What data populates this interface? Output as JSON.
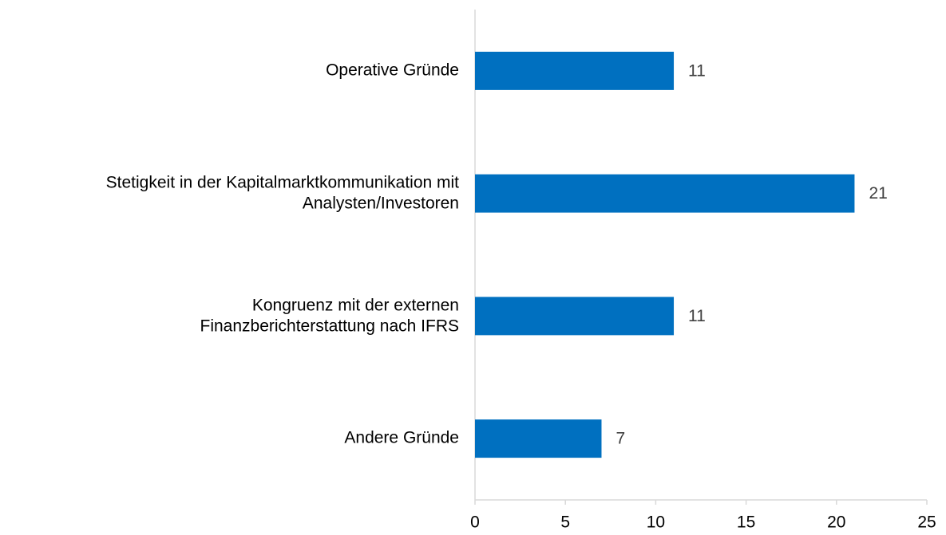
{
  "chart_data": {
    "type": "bar",
    "orientation": "horizontal",
    "categories": [
      "Operative Gründe",
      "Stetigkeit in der Kapitalmarktkommunikation mit\nAnalysten/Investoren",
      "Kongruenz mit der externen\nFinanzberichterstattung nach IFRS",
      "Andere Gründe"
    ],
    "values": [
      11,
      21,
      11,
      7
    ],
    "color": "#0070c0",
    "xlim": [
      0,
      25
    ],
    "xticks": [
      0,
      5,
      10,
      15,
      20,
      25
    ],
    "grid": false
  }
}
